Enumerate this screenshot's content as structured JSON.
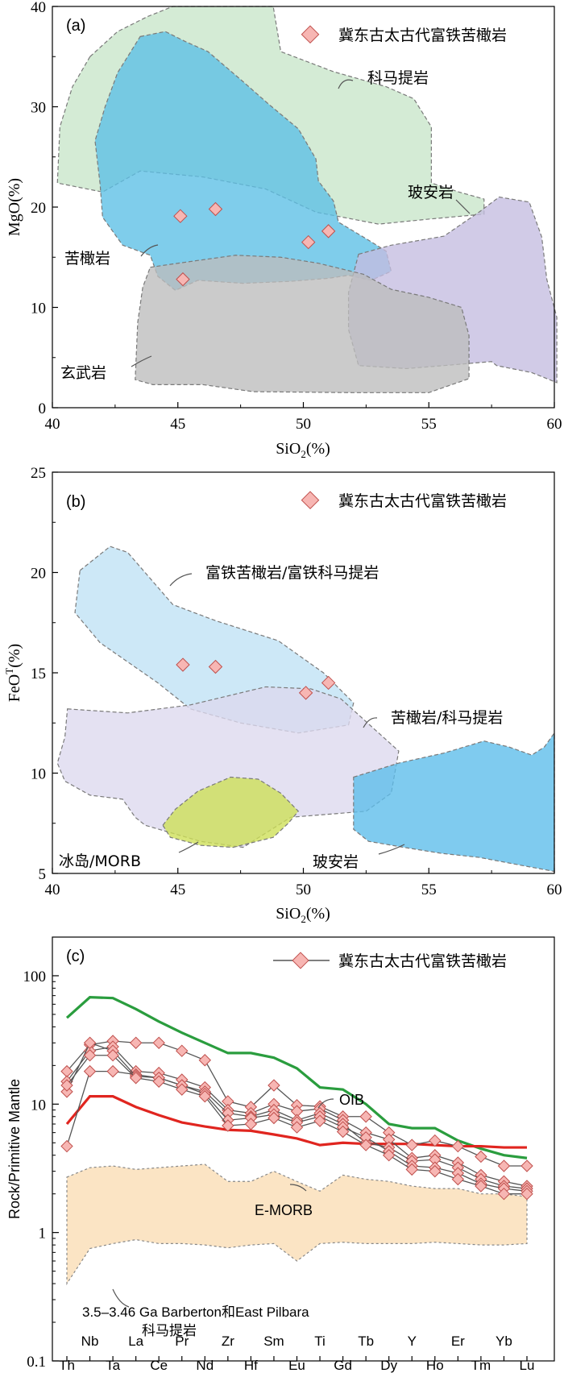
{
  "legend_label": "冀东古太古代富铁苦橄岩",
  "chart_data": [
    {
      "type": "scatter",
      "panel": "(a)",
      "xlabel": "SiO2(%)",
      "ylabel": "MgO(%)",
      "xlim": [
        40,
        60
      ],
      "ylim": [
        0,
        40
      ],
      "xticks": [
        "40",
        "45",
        "50",
        "55",
        "60"
      ],
      "yticks": [
        "0",
        "10",
        "20",
        "30",
        "40"
      ],
      "field_labels": [
        "科马提岩",
        "玻安岩",
        "苦橄岩",
        "玄武岩"
      ],
      "series": [
        {
          "name": "冀东古太古代富铁苦橄岩",
          "points": [
            [
              45.1,
              19.1
            ],
            [
              46.5,
              19.8
            ],
            [
              45.2,
              12.8
            ],
            [
              50.2,
              16.5
            ],
            [
              51.0,
              17.6
            ]
          ]
        }
      ],
      "fields": [
        {
          "name": "科马提岩",
          "color": "#c8e6c9",
          "polygon": [
            [
              41.5,
              35
            ],
            [
              42.6,
              37.5
            ],
            [
              43.8,
              39
            ],
            [
              44.8,
              40
            ],
            [
              48.8,
              40
            ],
            [
              49.1,
              35.5
            ],
            [
              51.2,
              33.5
            ],
            [
              53.3,
              32
            ],
            [
              54.4,
              30.8
            ],
            [
              55.1,
              28
            ],
            [
              55.1,
              22.4
            ],
            [
              56.2,
              21.5
            ],
            [
              57.2,
              20.8
            ],
            [
              57.2,
              19.3
            ],
            [
              55.0,
              18.8
            ],
            [
              53.0,
              18.3
            ],
            [
              50.5,
              19.5
            ],
            [
              48.5,
              21.8
            ],
            [
              46.0,
              23
            ],
            [
              43.5,
              23.6
            ],
            [
              42.0,
              21.5
            ],
            [
              40.2,
              22.4
            ],
            [
              40.3,
              28
            ],
            [
              40.8,
              32
            ]
          ]
        },
        {
          "name": "苦橄岩",
          "color": "#5bbfe6",
          "polygon": [
            [
              43.5,
              37
            ],
            [
              44.5,
              37.5
            ],
            [
              45.3,
              36.5
            ],
            [
              46.2,
              35.5
            ],
            [
              47.6,
              32.5
            ],
            [
              48.6,
              30.3
            ],
            [
              49.8,
              27.8
            ],
            [
              50.5,
              24.8
            ],
            [
              50.6,
              22.6
            ],
            [
              51.2,
              20.6
            ],
            [
              51.4,
              18.5
            ],
            [
              52.6,
              16.7
            ],
            [
              53.3,
              15.6
            ],
            [
              53.5,
              13.6
            ],
            [
              52.7,
              12.7
            ],
            [
              51.8,
              13.2
            ],
            [
              51.0,
              12.9
            ],
            [
              49.5,
              12.6
            ],
            [
              47.6,
              12.4
            ],
            [
              45.8,
              12.7
            ],
            [
              44.9,
              11.7
            ],
            [
              44.2,
              13.1
            ],
            [
              43.9,
              15.2
            ],
            [
              42.8,
              16.2
            ],
            [
              42.0,
              19.0
            ],
            [
              41.9,
              22.3
            ],
            [
              41.7,
              26.6
            ],
            [
              42.1,
              30.0
            ],
            [
              42.6,
              33.4
            ]
          ]
        },
        {
          "name": "玻安岩",
          "color": "#c4bde0",
          "polygon": [
            [
              52.2,
              15.3
            ],
            [
              53.5,
              16.2
            ],
            [
              55.6,
              17.1
            ],
            [
              57.0,
              19.5
            ],
            [
              57.8,
              21.0
            ],
            [
              59.0,
              20.5
            ],
            [
              59.5,
              17.0
            ],
            [
              59.7,
              12.8
            ],
            [
              60.1,
              9.0
            ],
            [
              60.1,
              2.5
            ],
            [
              59.1,
              3.5
            ],
            [
              57.7,
              4.2
            ],
            [
              57.5,
              4.6
            ],
            [
              55.6,
              4.2
            ],
            [
              54.1,
              3.9
            ],
            [
              52.2,
              4.2
            ],
            [
              51.8,
              7.8
            ],
            [
              51.8,
              11.5
            ]
          ]
        },
        {
          "name": "玄武岩",
          "color": "#bdbdbd",
          "polygon": [
            [
              43.9,
              14.0
            ],
            [
              45.0,
              14.4
            ],
            [
              47.3,
              15.2
            ],
            [
              49.1,
              15.0
            ],
            [
              50.6,
              14.4
            ],
            [
              52.4,
              13.3
            ],
            [
              53.5,
              11.8
            ],
            [
              55.0,
              11.0
            ],
            [
              56.3,
              10.0
            ],
            [
              56.6,
              7.2
            ],
            [
              56.6,
              2.9
            ],
            [
              55.0,
              1.5
            ],
            [
              52.0,
              1.5
            ],
            [
              48.0,
              1.6
            ],
            [
              46.0,
              2.3
            ],
            [
              44.0,
              2.3
            ],
            [
              43.3,
              2.8
            ],
            [
              43.4,
              8.5
            ],
            [
              43.6,
              12.0
            ]
          ]
        }
      ]
    },
    {
      "type": "scatter",
      "panel": "(b)",
      "xlabel": "SiO2(%)",
      "ylabel": "FeOT(%)",
      "xlim": [
        40,
        60
      ],
      "ylim": [
        5,
        25
      ],
      "xticks": [
        "40",
        "45",
        "50",
        "55",
        "60"
      ],
      "yticks": [
        "5",
        "10",
        "15",
        "20",
        "25"
      ],
      "field_labels": [
        "富铁苦橄岩/富铁科马提岩",
        "苦橄岩/科马提岩",
        "冰岛/MORB",
        "玻安岩"
      ],
      "series": [
        {
          "name": "冀东古太古代富铁苦橄岩",
          "points": [
            [
              45.2,
              15.4
            ],
            [
              46.5,
              15.3
            ],
            [
              50.1,
              14.0
            ],
            [
              51.0,
              14.5
            ]
          ]
        }
      ],
      "fields": [
        {
          "name": "富铁苦橄岩/富铁科马提岩",
          "color": "#bfe1f5",
          "polygon": [
            [
              41.1,
              20.1
            ],
            [
              42.3,
              21.3
            ],
            [
              43.0,
              21.0
            ],
            [
              44.8,
              18.4
            ],
            [
              46.5,
              17.6
            ],
            [
              49.0,
              16.6
            ],
            [
              50.8,
              15.0
            ],
            [
              52.0,
              13.5
            ],
            [
              51.8,
              12.4
            ],
            [
              49.8,
              12.0
            ],
            [
              47.5,
              12.5
            ],
            [
              45.5,
              13.2
            ],
            [
              44.2,
              14.5
            ],
            [
              41.9,
              16.5
            ],
            [
              40.9,
              18.0
            ]
          ]
        },
        {
          "name": "苦橄岩/科马提岩",
          "color": "#ddd8ee",
          "polygon": [
            [
              40.6,
              13.2
            ],
            [
              43.0,
              13.0
            ],
            [
              45.5,
              13.4
            ],
            [
              48.5,
              14.3
            ],
            [
              50.3,
              14.2
            ],
            [
              51.5,
              13.7
            ],
            [
              53.0,
              12.0
            ],
            [
              53.8,
              11.1
            ],
            [
              53.5,
              9.0
            ],
            [
              52.5,
              8.1
            ],
            [
              51.5,
              8.0
            ],
            [
              49.5,
              7.8
            ],
            [
              47.6,
              6.3
            ],
            [
              45.9,
              6.6
            ],
            [
              43.7,
              7.4
            ],
            [
              43.3,
              7.8
            ],
            [
              42.8,
              8.7
            ],
            [
              41.5,
              8.9
            ],
            [
              40.5,
              9.6
            ],
            [
              40.2,
              10.5
            ],
            [
              40.5,
              11.8
            ]
          ]
        },
        {
          "name": "冰岛/MORB",
          "color": "#cddf55",
          "polygon": [
            [
              44.4,
              7.4
            ],
            [
              44.9,
              8.2
            ],
            [
              45.8,
              9.1
            ],
            [
              47.1,
              9.8
            ],
            [
              48.2,
              9.7
            ],
            [
              49.1,
              9.0
            ],
            [
              49.8,
              8.1
            ],
            [
              49.4,
              7.5
            ],
            [
              48.8,
              6.8
            ],
            [
              47.2,
              6.3
            ],
            [
              45.9,
              6.4
            ],
            [
              44.7,
              6.8
            ]
          ]
        },
        {
          "name": "玻安岩",
          "color": "#5bbcea",
          "polygon": [
            [
              52.0,
              9.8
            ],
            [
              53.8,
              10.5
            ],
            [
              55.6,
              11.0
            ],
            [
              57.2,
              11.6
            ],
            [
              58.2,
              11.3
            ],
            [
              59.1,
              10.9
            ],
            [
              59.6,
              11.3
            ],
            [
              60.0,
              12.0
            ],
            [
              60.0,
              5.1
            ],
            [
              58.7,
              5.4
            ],
            [
              57.0,
              5.8
            ],
            [
              55.5,
              6.0
            ],
            [
              54.0,
              6.3
            ],
            [
              52.6,
              6.6
            ],
            [
              52.0,
              7.2
            ]
          ]
        }
      ]
    },
    {
      "type": "line",
      "panel": "(c)",
      "ylabel": "Rock/Primitive Mantle",
      "yscale": "log",
      "ylim": [
        0.1,
        200
      ],
      "yticks": [
        "0.1",
        "1",
        "10",
        "100"
      ],
      "categories": [
        "Th",
        "Nb",
        "Ta",
        "La",
        "Ce",
        "Pr",
        "Nd",
        "Zr",
        "Hf",
        "Sm",
        "Eu",
        "Ti",
        "Gd",
        "Tb",
        "Dy",
        "Y",
        "Ho",
        "Er",
        "Tm",
        "Yb",
        "Lu"
      ],
      "top_labels": [
        "Nb",
        "La",
        "Pr",
        "Zr",
        "Sm",
        "Ti",
        "Tb",
        "Y",
        "Er",
        "Yb"
      ],
      "bottom_labels": [
        "Th",
        "Ta",
        "Ce",
        "Nd",
        "Hf",
        "Eu",
        "Gd",
        "Dy",
        "Ho",
        "Tm",
        "Lu"
      ],
      "series": [
        {
          "name": "OIB",
          "color": "#2a9d3e",
          "values": [
            47,
            68,
            67,
            55,
            44,
            36,
            30,
            25,
            25,
            23,
            19,
            13.5,
            13,
            10,
            7,
            6.5,
            6.5,
            5.2,
            4.5,
            4.0,
            3.8
          ]
        },
        {
          "name": "E-MORB",
          "color": "#e0251f",
          "values": [
            7,
            11.5,
            11.5,
            9.5,
            8.2,
            7.2,
            6.7,
            6.3,
            6.2,
            5.8,
            5.4,
            4.8,
            5.0,
            4.9,
            4.9,
            4.9,
            4.8,
            4.7,
            4.7,
            4.6,
            4.6
          ]
        },
        {
          "name": "冀东古太古代富铁苦橄岩",
          "values": [
            18,
            29,
            31,
            30,
            30,
            26,
            22,
            10.5,
            9.5,
            14,
            9.8,
            9.6,
            8,
            8,
            6,
            4.8,
            5.2,
            4.7,
            3.9,
            3.3,
            3.3
          ]
        },
        {
          "name": "冀东古太古代富铁苦橄岩",
          "values": [
            15,
            26,
            28,
            18,
            17.5,
            15.5,
            13.5,
            9,
            8.5,
            10,
            8.8,
            9.2,
            7.5,
            6,
            5.3,
            3.8,
            4.0,
            3.5,
            2.8,
            2.5,
            2.3
          ]
        },
        {
          "name": "冀东古太古代富铁苦橄岩",
          "values": [
            4.7,
            18,
            18,
            17,
            16,
            14,
            12.5,
            8.5,
            8,
            9,
            7.5,
            8.5,
            7.0,
            5.0,
            4.6,
            3.6,
            3.7,
            3.2,
            2.6,
            2.3,
            2.2
          ]
        },
        {
          "name": "冀东古太古代富铁苦橄岩",
          "values": [
            12.5,
            30,
            26,
            16.5,
            16,
            14,
            12,
            7.5,
            7.8,
            8.3,
            7.2,
            8.0,
            6.6,
            5.5,
            4.3,
            3.3,
            3.2,
            2.9,
            2.4,
            2.2,
            2.1
          ]
        },
        {
          "name": "冀东古太古代富铁苦橄岩",
          "values": [
            14,
            24,
            24,
            16,
            15,
            13,
            11.5,
            6.8,
            7,
            7.8,
            6.6,
            7.4,
            6.1,
            4.8,
            4.0,
            3.1,
            3.0,
            2.6,
            2.3,
            2.0,
            2.0
          ]
        }
      ],
      "band": {
        "name": "3.5–3.46 Ga Barberton和East Pilbara 科马提岩",
        "color": "#fbe4c4",
        "upper": [
          2.7,
          3.2,
          3.3,
          3.1,
          3.2,
          3.3,
          3.4,
          2.5,
          2.5,
          3.0,
          2.5,
          2.1,
          2.8,
          2.6,
          2.5,
          2.3,
          2.2,
          2.2,
          2.0,
          2.0,
          1.9
        ],
        "lower": [
          0.4,
          0.75,
          0.82,
          0.88,
          0.82,
          0.82,
          0.8,
          0.76,
          0.8,
          0.82,
          0.6,
          0.82,
          0.84,
          0.82,
          0.82,
          0.82,
          0.84,
          0.82,
          0.8,
          0.8,
          0.82
        ]
      },
      "annotations": [
        "OIB",
        "E-MORB",
        "3.5–3.46 Ga Barberton和East Pilbara",
        "科马提岩"
      ]
    }
  ]
}
